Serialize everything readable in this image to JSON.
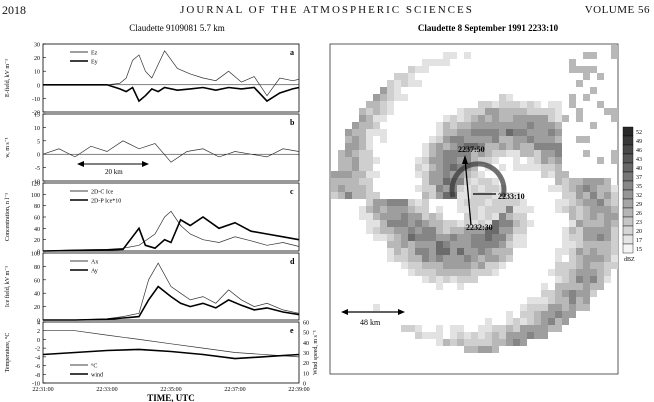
{
  "header": {
    "page_number": "2018",
    "journal": "JOURNAL OF THE ATMOSPHERIC SCIENCES",
    "volume": "VOLUME 56"
  },
  "left_figure": {
    "title": "Claudette 9109081 5.7 km",
    "xlabel": "TIME, UTC",
    "xticks": [
      "22:31:00",
      "22:33:00",
      "22:35:00",
      "22:37:00",
      "22:39:00"
    ]
  },
  "right_figure": {
    "title": "Claudette 8 September 1991 2233:10",
    "labels": [
      "2237:50",
      "2233:10",
      "2232:30"
    ],
    "scale_label": "48 km",
    "colorbar_unit": "dBZ",
    "colorbar_levels": [
      "52",
      "49",
      "46",
      "43",
      "40",
      "37",
      "35",
      "32",
      "29",
      "26",
      "23",
      "20",
      "17",
      "15"
    ]
  },
  "chart_data": [
    {
      "type": "line",
      "panel": "a",
      "ylabel": "E-field, kV m⁻¹",
      "ylim": [
        -20,
        30
      ],
      "yticks": [
        "30",
        "20",
        "10",
        "0",
        "-10",
        "-20"
      ],
      "series": [
        {
          "name": "Ez",
          "x": [
            0,
            1,
            1.5,
            2,
            2.4,
            2.6,
            2.8,
            3,
            3.2,
            3.4,
            3.6,
            3.8,
            4.2,
            4.6,
            5,
            5.4,
            5.8,
            6.2,
            6.6,
            7,
            7.4,
            7.8,
            8
          ],
          "y": [
            0,
            0,
            0,
            0,
            1,
            5,
            18,
            22,
            10,
            5,
            15,
            25,
            12,
            8,
            5,
            3,
            10,
            2,
            6,
            -8,
            5,
            3,
            4
          ]
        },
        {
          "name": "Ey",
          "x": [
            0,
            1,
            1.5,
            2,
            2.4,
            2.6,
            2.8,
            3,
            3.2,
            3.4,
            3.6,
            3.8,
            4.2,
            4.6,
            5,
            5.4,
            5.8,
            6.2,
            6.6,
            7,
            7.4,
            7.8,
            8
          ],
          "y": [
            0,
            0,
            0,
            0,
            -3,
            -5,
            -2,
            -12,
            -8,
            -3,
            -5,
            -2,
            -4,
            -3,
            -2,
            -4,
            -2,
            -3,
            -2,
            -12,
            -6,
            -3,
            -2
          ]
        }
      ]
    },
    {
      "type": "line",
      "panel": "b",
      "ylabel": "w, m s⁻¹",
      "ylim": [
        -10,
        15
      ],
      "yticks": [
        "15",
        "10",
        "5",
        "0",
        "-5",
        "-10"
      ],
      "annotation": "20 km",
      "series": [
        {
          "name": "w",
          "x": [
            0,
            0.5,
            1,
            1.5,
            2,
            2.5,
            3,
            3.5,
            4,
            4.5,
            5,
            5.5,
            6,
            6.5,
            7,
            7.5,
            8
          ],
          "y": [
            0,
            2,
            -1,
            3,
            1,
            5,
            2,
            4,
            -3,
            1,
            2,
            -1,
            1,
            0,
            -1,
            2,
            1
          ]
        }
      ]
    },
    {
      "type": "line",
      "panel": "c",
      "ylabel": "Concentration, n l⁻¹",
      "ylim": [
        0,
        120
      ],
      "yticks": [
        "120",
        "100",
        "80",
        "60",
        "40",
        "20",
        "0"
      ],
      "series": [
        {
          "name": "2D-C Ice",
          "x": [
            0,
            1,
            2,
            2.5,
            3,
            3.5,
            3.8,
            4,
            4.3,
            4.6,
            5,
            5.5,
            6,
            6.5,
            7,
            7.5,
            8
          ],
          "y": [
            0,
            2,
            3,
            5,
            10,
            30,
            60,
            70,
            45,
            30,
            20,
            15,
            25,
            18,
            10,
            15,
            8
          ]
        },
        {
          "name": "2D-P Ice*10",
          "x": [
            0,
            1,
            2,
            2.5,
            3,
            3.2,
            3.5,
            3.8,
            4,
            4.3,
            4.6,
            5,
            5.5,
            6,
            6.5,
            7,
            7.5,
            8
          ],
          "y": [
            0,
            1,
            2,
            3,
            40,
            10,
            5,
            20,
            15,
            55,
            45,
            60,
            40,
            50,
            35,
            30,
            25,
            20
          ]
        }
      ]
    },
    {
      "type": "line",
      "panel": "d",
      "ylabel": "Ice field, kV m⁻¹",
      "ylim": [
        0,
        100
      ],
      "yticks": [
        "100",
        "80",
        "60",
        "40",
        "20",
        "0"
      ],
      "series": [
        {
          "name": "Ax",
          "x": [
            0,
            1,
            2,
            2.5,
            3,
            3.3,
            3.6,
            4,
            4.3,
            4.6,
            5,
            5.4,
            5.8,
            6.2,
            6.6,
            7,
            7.5,
            8
          ],
          "y": [
            0,
            0,
            2,
            5,
            10,
            60,
            85,
            50,
            40,
            30,
            35,
            25,
            45,
            30,
            20,
            25,
            15,
            10
          ]
        },
        {
          "name": "Ay",
          "x": [
            0,
            1,
            2,
            2.5,
            3,
            3.3,
            3.6,
            4,
            4.3,
            4.6,
            5,
            5.4,
            5.8,
            6.2,
            6.6,
            7,
            7.5,
            8
          ],
          "y": [
            0,
            0,
            1,
            3,
            5,
            30,
            50,
            35,
            25,
            20,
            25,
            18,
            30,
            22,
            15,
            18,
            12,
            8
          ]
        }
      ]
    },
    {
      "type": "line",
      "panel": "e",
      "ylabel": "Temperature, °C",
      "y2label": "Wind speed, m s⁻¹",
      "ylim": [
        -10,
        4
      ],
      "yticks": [
        "4",
        "2",
        "0",
        "-2",
        "-4",
        "-6",
        "-8",
        "-10"
      ],
      "y2lim": [
        0,
        60
      ],
      "y2ticks": [
        "60",
        "50",
        "40",
        "30",
        "20",
        "10",
        "0"
      ],
      "series": [
        {
          "name": "°C",
          "x": [
            0,
            1,
            2,
            3,
            4,
            5,
            6,
            7,
            8
          ],
          "y": [
            2,
            2,
            1,
            0,
            -1,
            -2,
            -3,
            -3.5,
            -4
          ]
        },
        {
          "name": "wind",
          "x": [
            0,
            1,
            2,
            3,
            4,
            5,
            6,
            7,
            8
          ],
          "y": [
            28,
            30,
            32,
            33,
            31,
            28,
            24,
            26,
            28
          ]
        }
      ]
    }
  ]
}
